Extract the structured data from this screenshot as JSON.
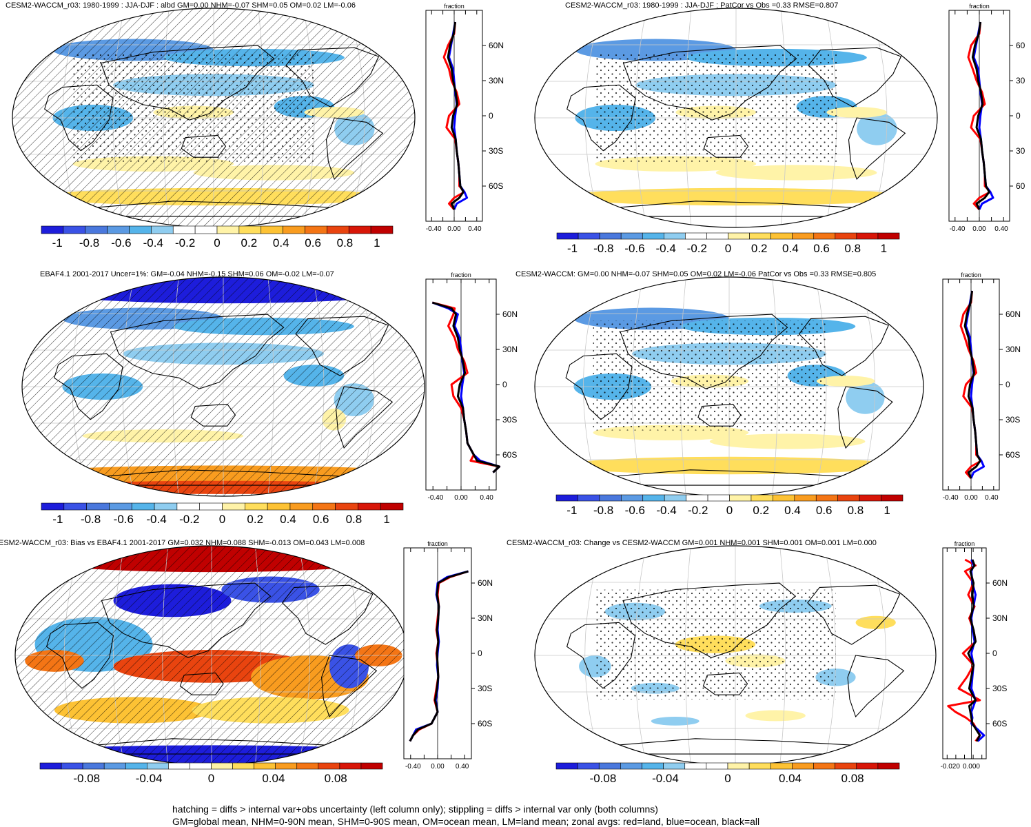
{
  "chart_data": [
    {
      "type": "heatmap",
      "title": "CESM2-WACCM_r03: 1980-1999 : JJA-DJF : albd GM=0.00 NHM=-0.07 SHM=0.05 OM=0.02 LM=-0.06",
      "zonal_xlabel": "fraction",
      "zonal_x_ticks": [
        "-0.40",
        "0.00",
        "0.40"
      ],
      "zonal_xlim": [
        -0.55,
        0.55
      ],
      "lat_ticks": [
        "60N",
        "30N",
        "0",
        "30S",
        "60S"
      ],
      "colorbar_ticks": [
        "-1",
        "-0.8",
        "-0.6",
        "-0.4",
        "-0.2",
        "0",
        "0.2",
        "0.4",
        "0.6",
        "0.8",
        "1"
      ],
      "colorbar_range": [
        -1.1,
        1.1
      ],
      "overlay": "hatching+stippling",
      "zonal_series": [
        {
          "color": "#ff0000",
          "lat": [
            80,
            70,
            60,
            50,
            40,
            30,
            20,
            10,
            0,
            -10,
            -20,
            -30,
            -40,
            -50,
            -60,
            -65,
            -70,
            -75,
            -80
          ],
          "values": [
            0.02,
            0.0,
            -0.12,
            -0.2,
            -0.1,
            -0.05,
            0.05,
            0.1,
            -0.1,
            -0.15,
            0.02,
            0.05,
            0.08,
            0.1,
            0.1,
            0.2,
            0.0,
            -0.1,
            0.0
          ]
        },
        {
          "color": "#0000ff",
          "lat": [
            80,
            70,
            60,
            50,
            40,
            30,
            20,
            10,
            0,
            -10,
            -20,
            -30,
            -40,
            -50,
            -60,
            -65,
            -70,
            -75,
            -80
          ],
          "values": [
            0.02,
            -0.02,
            -0.06,
            -0.1,
            -0.02,
            0.0,
            0.02,
            0.05,
            0.02,
            0.0,
            0.03,
            0.05,
            0.08,
            0.1,
            0.12,
            0.2,
            0.25,
            0.05,
            0.0
          ]
        },
        {
          "color": "#000000",
          "lat": [
            80,
            70,
            60,
            50,
            40,
            30,
            20,
            10,
            0,
            -10,
            -20,
            -30,
            -40,
            -50,
            -60,
            -65,
            -70,
            -75,
            -80
          ],
          "values": [
            0.02,
            -0.01,
            -0.08,
            -0.12,
            -0.05,
            -0.02,
            0.03,
            0.06,
            -0.02,
            -0.05,
            0.03,
            0.05,
            0.08,
            0.1,
            0.12,
            0.18,
            0.1,
            -0.05,
            0.0
          ]
        }
      ]
    },
    {
      "type": "heatmap",
      "title": "CESM2-WACCM_r03: 1980-1999 : JJA-DJF : PatCor vs Obs =0.33 RMSE=0.807",
      "zonal_xlabel": "fraction",
      "zonal_x_ticks": [
        "-0.40",
        "0.00",
        "0.40"
      ],
      "zonal_xlim": [
        -0.55,
        0.55
      ],
      "lat_ticks": [
        "60",
        "30",
        "0",
        "30",
        "60"
      ],
      "colorbar_ticks": [
        "-1",
        "-0.8",
        "-0.6",
        "-0.4",
        "-0.2",
        "0",
        "0.2",
        "0.4",
        "0.6",
        "0.8",
        "1"
      ],
      "colorbar_range": [
        -1.1,
        1.1
      ],
      "overlay": "stippling",
      "zonal_series": [
        {
          "color": "#ff0000",
          "lat": [
            80,
            70,
            60,
            50,
            40,
            30,
            20,
            10,
            0,
            -10,
            -20,
            -30,
            -40,
            -50,
            -60,
            -65,
            -70,
            -75,
            -80
          ],
          "values": [
            0.02,
            0.0,
            -0.15,
            -0.2,
            -0.12,
            -0.05,
            0.05,
            0.1,
            -0.1,
            -0.15,
            0.02,
            0.05,
            0.08,
            0.1,
            0.1,
            0.2,
            0.0,
            -0.1,
            0.0
          ]
        },
        {
          "color": "#0000ff",
          "lat": [
            80,
            70,
            60,
            50,
            40,
            30,
            20,
            10,
            0,
            -10,
            -20,
            -30,
            -40,
            -50,
            -60,
            -65,
            -70,
            -75,
            -80
          ],
          "values": [
            0.02,
            -0.02,
            -0.06,
            -0.1,
            -0.02,
            0.0,
            0.02,
            0.05,
            0.02,
            0.0,
            0.03,
            0.05,
            0.08,
            0.1,
            0.12,
            0.2,
            0.25,
            0.05,
            0.0
          ]
        },
        {
          "color": "#000000",
          "lat": [
            80,
            70,
            60,
            50,
            40,
            30,
            20,
            10,
            0,
            -10,
            -20,
            -30,
            -40,
            -50,
            -60,
            -65,
            -70,
            -75,
            -80
          ],
          "values": [
            0.02,
            -0.01,
            -0.08,
            -0.12,
            -0.05,
            -0.02,
            0.03,
            0.06,
            -0.02,
            -0.05,
            0.03,
            0.05,
            0.08,
            0.1,
            0.12,
            0.18,
            0.1,
            -0.05,
            0.0
          ]
        }
      ]
    },
    {
      "type": "heatmap",
      "title": "EBAF4.1 2001-2017 Uncer=1%: GM=-0.04 NHM=-0.15 SHM=0.06 OM=-0.02 LM=-0.07",
      "zonal_xlabel": "fraction",
      "zonal_x_ticks": [
        "-0.40",
        "0.00",
        "0.40"
      ],
      "zonal_xlim": [
        -0.55,
        0.55
      ],
      "lat_ticks": [
        "60N",
        "30N",
        "0",
        "30S",
        "60S"
      ],
      "colorbar_ticks": [
        "-1",
        "-0.8",
        "-0.6",
        "-0.4",
        "-0.2",
        "0",
        "0.2",
        "0.4",
        "0.6",
        "0.8",
        "1"
      ],
      "colorbar_range": [
        -1.1,
        1.1
      ],
      "overlay": "hatching",
      "zonal_series": [
        {
          "color": "#ff0000",
          "lat": [
            70,
            65,
            60,
            50,
            40,
            30,
            20,
            10,
            0,
            -10,
            -20,
            -30,
            -40,
            -50,
            -60,
            -65,
            -70,
            -75
          ],
          "values": [
            -0.45,
            -0.1,
            -0.12,
            -0.2,
            -0.1,
            -0.05,
            0.05,
            0.1,
            -0.15,
            -0.12,
            0.0,
            0.05,
            0.08,
            0.1,
            0.2,
            0.15,
            0.6,
            0.5
          ]
        },
        {
          "color": "#0000ff",
          "lat": [
            70,
            65,
            60,
            50,
            40,
            30,
            20,
            10,
            0,
            -10,
            -20,
            -30,
            -40,
            -50,
            -60,
            -65,
            -70,
            -75
          ],
          "values": [
            -0.45,
            -0.2,
            -0.05,
            -0.1,
            -0.02,
            0.0,
            0.02,
            0.05,
            0.02,
            0.0,
            0.03,
            0.05,
            0.08,
            0.1,
            0.2,
            0.3,
            0.6,
            0.5
          ]
        },
        {
          "color": "#000000",
          "lat": [
            70,
            65,
            60,
            50,
            40,
            30,
            20,
            10,
            0,
            -10,
            -20,
            -30,
            -40,
            -50,
            -60,
            -65,
            -70,
            -75
          ],
          "values": [
            -0.45,
            -0.15,
            -0.08,
            -0.12,
            -0.05,
            -0.02,
            0.03,
            0.06,
            -0.02,
            -0.05,
            0.03,
            0.05,
            0.08,
            0.1,
            0.2,
            0.25,
            0.6,
            0.5
          ]
        }
      ]
    },
    {
      "type": "heatmap",
      "title": "CESM2-WACCM: GM=0.00 NHM=-0.07 SHM=0.05 OM=0.02 LM=-0.06 PatCor vs Obs =0.33 RMSE=0.805",
      "zonal_xlabel": "fraction",
      "zonal_x_ticks": [
        "-0.40",
        "0.00",
        "0.40"
      ],
      "zonal_xlim": [
        -0.55,
        0.55
      ],
      "lat_ticks": [
        "60N",
        "30N",
        "0",
        "30S",
        "60S"
      ],
      "colorbar_ticks": [
        "-1",
        "-0.8",
        "-0.6",
        "-0.4",
        "-0.2",
        "0",
        "0.2",
        "0.4",
        "0.6",
        "0.8",
        "1"
      ],
      "colorbar_range": [
        -1.1,
        1.1
      ],
      "overlay": "stippling",
      "zonal_series": [
        {
          "color": "#ff0000",
          "lat": [
            80,
            70,
            60,
            50,
            40,
            30,
            20,
            10,
            0,
            -10,
            -20,
            -30,
            -40,
            -50,
            -60,
            -65,
            -70,
            -75,
            -80
          ],
          "values": [
            0.02,
            0.0,
            -0.15,
            -0.2,
            -0.12,
            -0.05,
            0.05,
            0.1,
            -0.1,
            -0.15,
            0.02,
            0.05,
            0.08,
            0.1,
            0.1,
            0.2,
            0.0,
            -0.1,
            0.0
          ]
        },
        {
          "color": "#0000ff",
          "lat": [
            80,
            70,
            60,
            50,
            40,
            30,
            20,
            10,
            0,
            -10,
            -20,
            -30,
            -40,
            -50,
            -60,
            -65,
            -70,
            -75,
            -80
          ],
          "values": [
            0.02,
            -0.02,
            -0.06,
            -0.1,
            -0.02,
            0.0,
            0.02,
            0.05,
            0.02,
            0.0,
            0.03,
            0.05,
            0.08,
            0.1,
            0.12,
            0.2,
            0.25,
            0.05,
            0.0
          ]
        },
        {
          "color": "#000000",
          "lat": [
            80,
            70,
            60,
            50,
            40,
            30,
            20,
            10,
            0,
            -10,
            -20,
            -30,
            -40,
            -50,
            -60,
            -65,
            -70,
            -75,
            -80
          ],
          "values": [
            0.02,
            -0.01,
            -0.08,
            -0.12,
            -0.05,
            -0.02,
            0.03,
            0.06,
            -0.02,
            -0.05,
            0.03,
            0.05,
            0.08,
            0.1,
            0.12,
            0.18,
            0.1,
            -0.05,
            0.0
          ]
        }
      ]
    },
    {
      "type": "heatmap",
      "title": "ESM2-WACCM_r03: Bias vs EBAF4.1 2001-2017 GM=0.032 NHM=0.088 SHM=-0.013 OM=0.043 LM=0.008",
      "zonal_xlabel": "fraction",
      "zonal_x_ticks": [
        "-0.40",
        "0.00",
        "0.40"
      ],
      "zonal_xlim": [
        -0.55,
        0.55
      ],
      "lat_ticks": [
        "60N",
        "30N",
        "0",
        "30S",
        "60S"
      ],
      "colorbar_ticks": [
        "-0.08",
        "-0.04",
        "0",
        "0.04",
        "0.08"
      ],
      "colorbar_range": [
        -0.11,
        0.11
      ],
      "overlay": "hatching",
      "zonal_series": [
        {
          "color": "#ff0000",
          "lat": [
            70,
            65,
            60,
            50,
            40,
            30,
            20,
            10,
            0,
            -10,
            -20,
            -30,
            -40,
            -50,
            -60,
            -65,
            -70,
            -75
          ],
          "values": [
            0.5,
            0.2,
            0.02,
            0.0,
            0.02,
            0.0,
            -0.02,
            0.01,
            -0.02,
            0.0,
            0.01,
            -0.02,
            -0.05,
            0.0,
            -0.1,
            -0.3,
            -0.4,
            -0.45
          ]
        },
        {
          "color": "#0000ff",
          "lat": [
            70,
            65,
            60,
            50,
            40,
            30,
            20,
            10,
            0,
            -10,
            -20,
            -30,
            -40,
            -50,
            -60,
            -65,
            -70,
            -75
          ],
          "values": [
            0.5,
            0.15,
            0.0,
            -0.02,
            0.02,
            0.01,
            0.0,
            0.02,
            0.0,
            -0.01,
            0.01,
            0.0,
            -0.03,
            0.0,
            -0.1,
            -0.35,
            -0.4,
            -0.45
          ]
        },
        {
          "color": "#000000",
          "lat": [
            70,
            65,
            60,
            50,
            40,
            30,
            20,
            10,
            0,
            -10,
            -20,
            -30,
            -40,
            -50,
            -60,
            -65,
            -70,
            -75
          ],
          "values": [
            0.5,
            0.18,
            0.01,
            -0.01,
            0.02,
            0.01,
            -0.01,
            0.01,
            -0.01,
            0.0,
            0.01,
            -0.01,
            -0.04,
            0.0,
            -0.1,
            -0.32,
            -0.4,
            -0.45
          ]
        }
      ]
    },
    {
      "type": "heatmap",
      "title": "CESM2-WACCM_r03: Change vs CESM2-WACCM GM=0.001 NHM=0.001 SHM=0.001 OM=0.001 LM=0.000",
      "zonal_xlabel": "fraction",
      "zonal_x_ticks": [
        "-0.020",
        "0.000"
      ],
      "zonal_xlim": [
        -0.027,
        0.014
      ],
      "lat_ticks": [
        "60N",
        "30N",
        "0",
        "30S",
        "60S"
      ],
      "colorbar_ticks": [
        "-0.08",
        "-0.04",
        "0",
        "0.04",
        "0.08"
      ],
      "colorbar_range": [
        -0.11,
        0.11
      ],
      "overlay": "stippling",
      "zonal_series": [
        {
          "color": "#ff0000",
          "lat": [
            80,
            75,
            70,
            60,
            50,
            40,
            30,
            20,
            10,
            0,
            -10,
            -20,
            -30,
            -40,
            -45,
            -50,
            -55,
            -60,
            -70,
            -75
          ],
          "values": [
            -0.006,
            0.004,
            -0.006,
            0.002,
            -0.003,
            0.003,
            -0.002,
            0.002,
            0.004,
            -0.008,
            0.002,
            -0.004,
            -0.012,
            0.008,
            -0.022,
            -0.015,
            -0.005,
            0.002,
            0.008,
            0.004
          ]
        },
        {
          "color": "#0000ff",
          "lat": [
            80,
            75,
            70,
            60,
            50,
            40,
            30,
            20,
            10,
            0,
            -10,
            -20,
            -30,
            -40,
            -45,
            -50,
            -55,
            -60,
            -70,
            -75
          ],
          "values": [
            0.0,
            0.002,
            0.0,
            0.001,
            0.004,
            0.002,
            0.0,
            0.001,
            0.003,
            0.0,
            0.002,
            0.001,
            0.0,
            0.004,
            0.002,
            0.0,
            0.001,
            0.0,
            0.012,
            0.006
          ]
        },
        {
          "color": "#000000",
          "lat": [
            80,
            75,
            70,
            60,
            50,
            40,
            30,
            20,
            10,
            0,
            -10,
            -20,
            -30,
            -40,
            -45,
            -50,
            -55,
            -60,
            -70,
            -75
          ],
          "values": [
            0.001,
            0.003,
            -0.001,
            0.002,
            0.001,
            0.002,
            -0.001,
            0.002,
            0.004,
            -0.003,
            0.002,
            0.0,
            -0.002,
            0.004,
            -0.002,
            -0.001,
            0.0,
            0.001,
            0.008,
            0.005
          ]
        }
      ]
    }
  ],
  "caption": {
    "line1": "hatching = diffs > internal var+obs uncertainty (left column only); stippling = diffs > internal var only (both columns)",
    "line2": "GM=global mean, NHM=0-90N mean, SHM=0-90S mean, OM=ocean mean, LM=land mean; zonal avgs: red=land, blue=ocean, black=all"
  },
  "colors": {
    "palette": [
      "#1d1ddb",
      "#3a52e6",
      "#4a78dd",
      "#5b9ae3",
      "#55b4ea",
      "#8fcdf0",
      "#ffffff",
      "#ffffff",
      "#fff3a8",
      "#ffde5c",
      "#fdc234",
      "#f99c1f",
      "#f47515",
      "#e9440f",
      "#d81608",
      "#c00000"
    ]
  }
}
